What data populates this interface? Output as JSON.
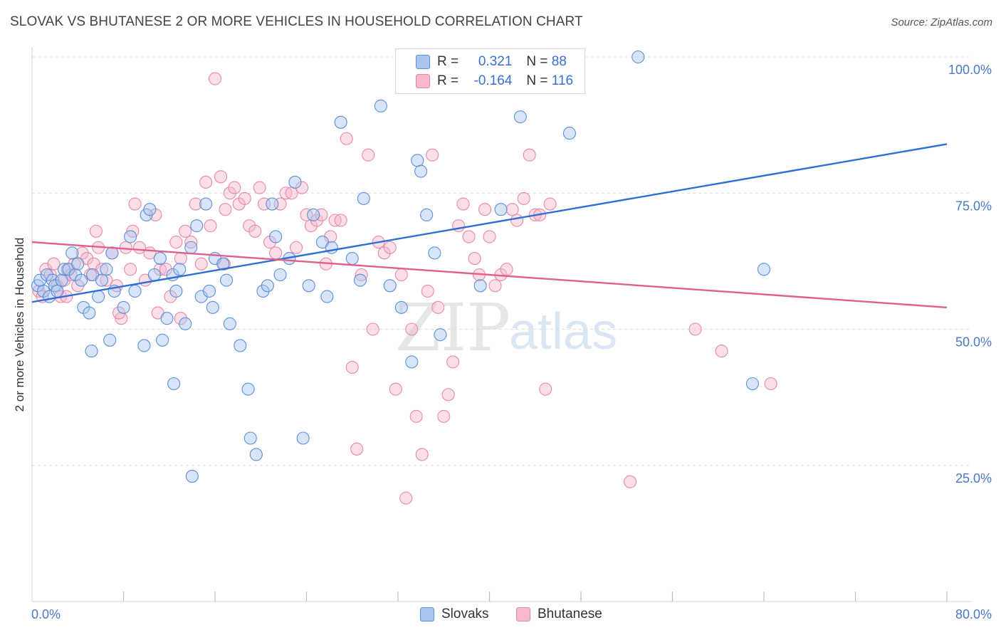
{
  "title": "SLOVAK VS BHUTANESE 2 OR MORE VEHICLES IN HOUSEHOLD CORRELATION CHART",
  "source": "Source: ZipAtlas.com",
  "watermark": {
    "zip": "ZIP",
    "atlas": "atlas"
  },
  "legend": {
    "r_label": "R =",
    "n_label": "N =",
    "rows": [
      {
        "name": "Slovaks",
        "r": "0.321",
        "n": "88"
      },
      {
        "name": "Bhutanese",
        "r": "-0.164",
        "n": "116"
      }
    ]
  },
  "colors": {
    "slovaks_fill": "#a9c6ef",
    "slovaks_stroke": "#5b8fd9",
    "slovaks_line": "#2f6fd3",
    "bhutanese_fill": "#f5b8cc",
    "bhutanese_stroke": "#e888a8",
    "bhutanese_line": "#e0608c",
    "tick_text": "#4a78c8"
  },
  "chart_data": {
    "type": "scatter",
    "title": "SLOVAK VS BHUTANESE 2 OR MORE VEHICLES IN HOUSEHOLD CORRELATION CHART",
    "xlabel": "",
    "ylabel": "2 or more Vehicles in Household",
    "xlim": [
      0,
      80
    ],
    "ylim": [
      0,
      100
    ],
    "x_ticks": [
      "0.0%",
      "80.0%"
    ],
    "y_ticks": [
      "25.0%",
      "50.0%",
      "75.0%",
      "100.0%"
    ],
    "y_tick_values": [
      25,
      50,
      75,
      100
    ],
    "grid": true,
    "legend_position": "bottom",
    "series": [
      {
        "name": "Slovaks",
        "trend": {
          "x0": 0,
          "y0": 55,
          "x1": 80,
          "y1": 84
        },
        "points": [
          [
            0.5,
            58
          ],
          [
            0.7,
            59
          ],
          [
            1.0,
            57
          ],
          [
            1.3,
            60
          ],
          [
            1.5,
            56
          ],
          [
            1.8,
            59
          ],
          [
            2.0,
            58
          ],
          [
            2.2,
            57
          ],
          [
            2.6,
            59
          ],
          [
            2.8,
            61
          ],
          [
            3.2,
            61
          ],
          [
            3.5,
            64
          ],
          [
            3.8,
            60
          ],
          [
            4.0,
            62
          ],
          [
            4.3,
            59
          ],
          [
            4.5,
            54
          ],
          [
            5.0,
            53
          ],
          [
            5.3,
            60
          ],
          [
            5.8,
            56
          ],
          [
            6.1,
            59
          ],
          [
            6.5,
            61
          ],
          [
            7.0,
            64
          ],
          [
            7.2,
            57
          ],
          [
            8.0,
            54
          ],
          [
            8.6,
            67
          ],
          [
            9.0,
            57
          ],
          [
            10.0,
            71
          ],
          [
            10.3,
            72
          ],
          [
            10.7,
            60
          ],
          [
            11.2,
            63
          ],
          [
            11.8,
            52
          ],
          [
            12.3,
            60
          ],
          [
            12.6,
            57
          ],
          [
            12.9,
            61
          ],
          [
            13.4,
            51
          ],
          [
            13.9,
            65
          ],
          [
            14.4,
            69
          ],
          [
            14.8,
            56
          ],
          [
            15.2,
            73
          ],
          [
            15.5,
            57
          ],
          [
            15.8,
            54
          ],
          [
            16.0,
            63
          ],
          [
            16.7,
            62
          ],
          [
            17.0,
            59
          ],
          [
            17.3,
            51
          ],
          [
            18.2,
            47
          ],
          [
            18.9,
            39
          ],
          [
            19.1,
            30
          ],
          [
            19.6,
            27
          ],
          [
            20.2,
            57
          ],
          [
            20.6,
            58
          ],
          [
            21.0,
            73
          ],
          [
            21.3,
            67
          ],
          [
            21.7,
            60
          ],
          [
            22.5,
            63
          ],
          [
            23.0,
            77
          ],
          [
            23.7,
            30
          ],
          [
            24.2,
            58
          ],
          [
            24.6,
            71
          ],
          [
            25.4,
            66
          ],
          [
            25.8,
            56
          ],
          [
            26.2,
            65
          ],
          [
            27.0,
            88
          ],
          [
            28.0,
            63
          ],
          [
            28.7,
            59
          ],
          [
            29.0,
            74
          ],
          [
            30.5,
            91
          ],
          [
            31.3,
            58
          ],
          [
            32.3,
            54
          ],
          [
            33.2,
            44
          ],
          [
            33.7,
            81
          ],
          [
            34.0,
            79
          ],
          [
            34.5,
            71
          ],
          [
            35.2,
            64
          ],
          [
            35.7,
            49
          ],
          [
            39.2,
            58
          ],
          [
            41.0,
            72
          ],
          [
            42.7,
            89
          ],
          [
            47.0,
            86
          ],
          [
            53.0,
            100
          ],
          [
            63.0,
            40
          ],
          [
            64.0,
            61
          ],
          [
            14.0,
            23
          ],
          [
            12.4,
            40
          ],
          [
            5.2,
            46
          ],
          [
            6.8,
            48
          ],
          [
            9.8,
            47
          ],
          [
            11.4,
            48
          ]
        ]
      },
      {
        "name": "Bhutanese",
        "trend": {
          "x0": 0,
          "y0": 66,
          "x1": 80,
          "y1": 54
        },
        "points": [
          [
            0.6,
            57
          ],
          [
            0.9,
            56
          ],
          [
            1.2,
            61
          ],
          [
            1.6,
            60
          ],
          [
            1.9,
            62
          ],
          [
            2.2,
            58
          ],
          [
            2.5,
            56
          ],
          [
            2.8,
            59
          ],
          [
            3.1,
            61
          ],
          [
            3.4,
            60
          ],
          [
            3.7,
            62
          ],
          [
            4.0,
            58
          ],
          [
            4.4,
            64
          ],
          [
            4.8,
            63
          ],
          [
            5.1,
            60
          ],
          [
            5.4,
            62
          ],
          [
            5.8,
            65
          ],
          [
            6.1,
            61
          ],
          [
            6.5,
            59
          ],
          [
            7.0,
            64
          ],
          [
            7.4,
            58
          ],
          [
            7.8,
            52
          ],
          [
            8.2,
            65
          ],
          [
            8.6,
            61
          ],
          [
            9.0,
            73
          ],
          [
            9.4,
            65
          ],
          [
            9.9,
            59
          ],
          [
            10.3,
            64
          ],
          [
            10.8,
            71
          ],
          [
            11.2,
            61
          ],
          [
            11.7,
            61
          ],
          [
            12.1,
            56
          ],
          [
            12.6,
            66
          ],
          [
            13.0,
            63
          ],
          [
            13.4,
            68
          ],
          [
            13.9,
            66
          ],
          [
            14.3,
            73
          ],
          [
            14.8,
            62
          ],
          [
            15.2,
            77
          ],
          [
            15.6,
            69
          ],
          [
            16.0,
            96
          ],
          [
            16.5,
            78
          ],
          [
            16.9,
            72
          ],
          [
            17.3,
            75
          ],
          [
            17.7,
            76
          ],
          [
            18.1,
            73
          ],
          [
            18.6,
            74
          ],
          [
            19.0,
            69
          ],
          [
            19.5,
            68
          ],
          [
            19.9,
            76
          ],
          [
            20.3,
            73
          ],
          [
            20.8,
            66
          ],
          [
            21.3,
            64
          ],
          [
            21.7,
            73
          ],
          [
            22.2,
            75
          ],
          [
            22.7,
            75
          ],
          [
            23.1,
            65
          ],
          [
            23.6,
            76
          ],
          [
            24.0,
            71
          ],
          [
            24.4,
            69
          ],
          [
            24.9,
            70
          ],
          [
            25.3,
            71
          ],
          [
            25.7,
            62
          ],
          [
            26.1,
            67
          ],
          [
            26.5,
            70
          ],
          [
            27.0,
            70
          ],
          [
            27.5,
            85
          ],
          [
            28.0,
            43
          ],
          [
            28.4,
            28
          ],
          [
            28.8,
            60
          ],
          [
            29.4,
            82
          ],
          [
            29.8,
            50
          ],
          [
            30.3,
            66
          ],
          [
            30.8,
            64
          ],
          [
            31.3,
            65
          ],
          [
            31.8,
            39
          ],
          [
            32.3,
            60
          ],
          [
            32.7,
            19
          ],
          [
            33.2,
            50
          ],
          [
            33.6,
            34
          ],
          [
            34.1,
            27
          ],
          [
            34.6,
            57
          ],
          [
            35.0,
            82
          ],
          [
            35.5,
            54
          ],
          [
            36.0,
            34
          ],
          [
            36.4,
            38
          ],
          [
            36.8,
            44
          ],
          [
            37.3,
            69
          ],
          [
            37.7,
            73
          ],
          [
            38.2,
            67
          ],
          [
            38.7,
            63
          ],
          [
            39.1,
            60
          ],
          [
            39.6,
            72
          ],
          [
            40.0,
            67
          ],
          [
            40.5,
            58
          ],
          [
            41.0,
            60
          ],
          [
            41.5,
            61
          ],
          [
            42.0,
            72
          ],
          [
            42.4,
            70
          ],
          [
            43.0,
            74
          ],
          [
            43.5,
            82
          ],
          [
            44.0,
            71
          ],
          [
            44.4,
            71
          ],
          [
            44.9,
            39
          ],
          [
            45.3,
            73
          ],
          [
            52.3,
            22
          ],
          [
            58.0,
            50
          ],
          [
            60.3,
            46
          ],
          [
            64.6,
            40
          ],
          [
            3.0,
            56
          ],
          [
            5.6,
            68
          ],
          [
            7.6,
            53
          ],
          [
            8.8,
            68
          ],
          [
            11.0,
            53
          ],
          [
            13.0,
            52
          ],
          [
            16.8,
            62
          ]
        ]
      }
    ]
  }
}
